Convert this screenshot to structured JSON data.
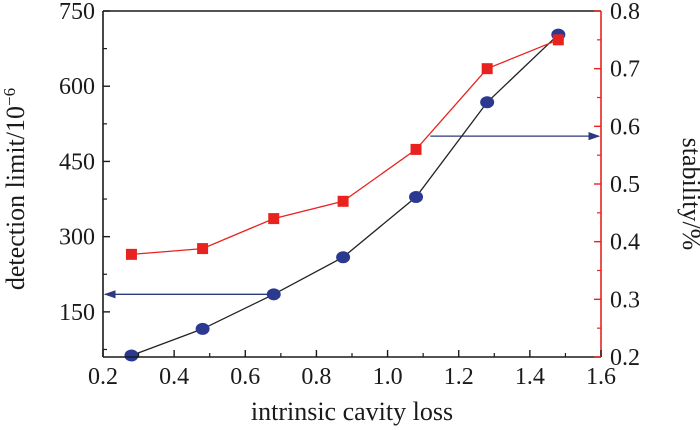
{
  "colors": {
    "axis": "#1a1a1a",
    "left_series_line": "#222222",
    "left_series_marker": "#2b3990",
    "right_series": "#e8231f",
    "arrow": "#2b3a7a"
  },
  "chart_data": {
    "type": "line",
    "dual_axis": true,
    "xlabel": "intrinsic cavity loss",
    "ylabel_left": "detection limit/10",
    "ylabel_left_exponent": "−6",
    "ylabel_right": "stability/%",
    "xlim": [
      0.2,
      1.6
    ],
    "ylim_left": [
      60,
      750
    ],
    "ylim_right": [
      0.2,
      0.8
    ],
    "x_ticks": [
      "0.2",
      "0.4",
      "0.6",
      "0.8",
      "1.0",
      "1.2",
      "1.4",
      "1.6"
    ],
    "y_left_ticks": [
      "150",
      "300",
      "450",
      "600",
      "750"
    ],
    "y_right_ticks": [
      "0.2",
      "0.3",
      "0.4",
      "0.5",
      "0.6",
      "0.7",
      "0.8"
    ],
    "series": [
      {
        "name": "detection limit",
        "axis": "left",
        "marker": "circle",
        "x": [
          0.28,
          0.48,
          0.68,
          0.875,
          1.08,
          1.28,
          1.48
        ],
        "values": [
          63,
          116,
          185,
          259,
          379,
          568,
          703
        ]
      },
      {
        "name": "stability",
        "axis": "right",
        "marker": "square",
        "x": [
          0.28,
          0.48,
          0.68,
          0.875,
          1.08,
          1.28,
          1.48
        ],
        "values": [
          0.378,
          0.388,
          0.44,
          0.47,
          0.56,
          0.7,
          0.75
        ]
      }
    ],
    "annotations": [
      {
        "type": "arrow",
        "points_to": "left axis",
        "from": [
          0.68,
          185
        ],
        "to": [
          0.2,
          185
        ]
      },
      {
        "type": "arrow",
        "points_to": "right axis",
        "from": [
          1.12,
          0.583
        ],
        "to": [
          1.6,
          0.583
        ]
      }
    ]
  }
}
